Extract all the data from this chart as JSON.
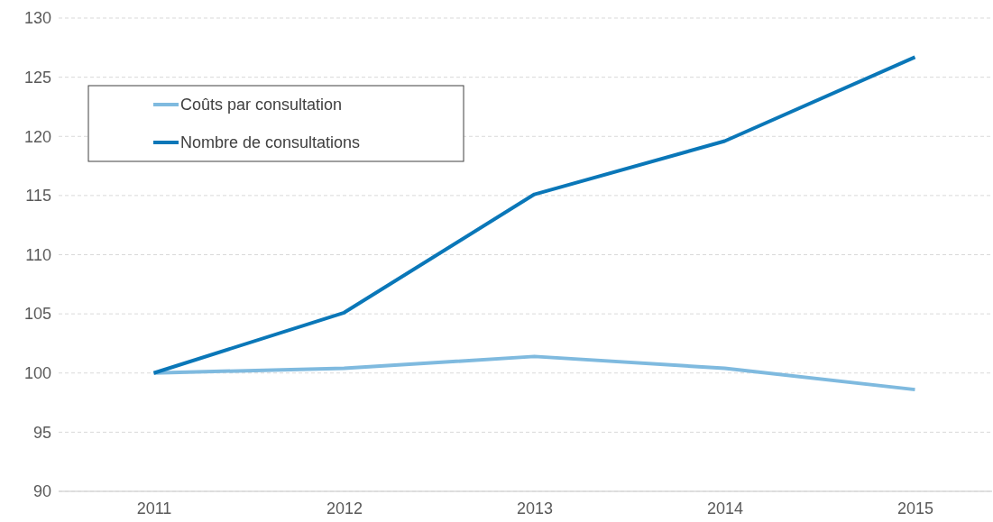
{
  "chart_data": {
    "type": "line",
    "categories": [
      "2011",
      "2012",
      "2013",
      "2014",
      "2015"
    ],
    "series": [
      {
        "name": "Coûts par consultation",
        "color": "#7fbadf",
        "values": [
          100,
          100.4,
          101.4,
          100.4,
          98.6
        ]
      },
      {
        "name": "Nombre de consultations",
        "color": "#0a77b8",
        "values": [
          100,
          105.1,
          115.1,
          119.6,
          126.7
        ]
      }
    ],
    "ylim": [
      90,
      130
    ],
    "yticks": [
      90,
      95,
      100,
      105,
      110,
      115,
      120,
      125,
      130
    ],
    "grid": "y",
    "legend": "top left",
    "marker": "none",
    "line_style": "solid"
  }
}
